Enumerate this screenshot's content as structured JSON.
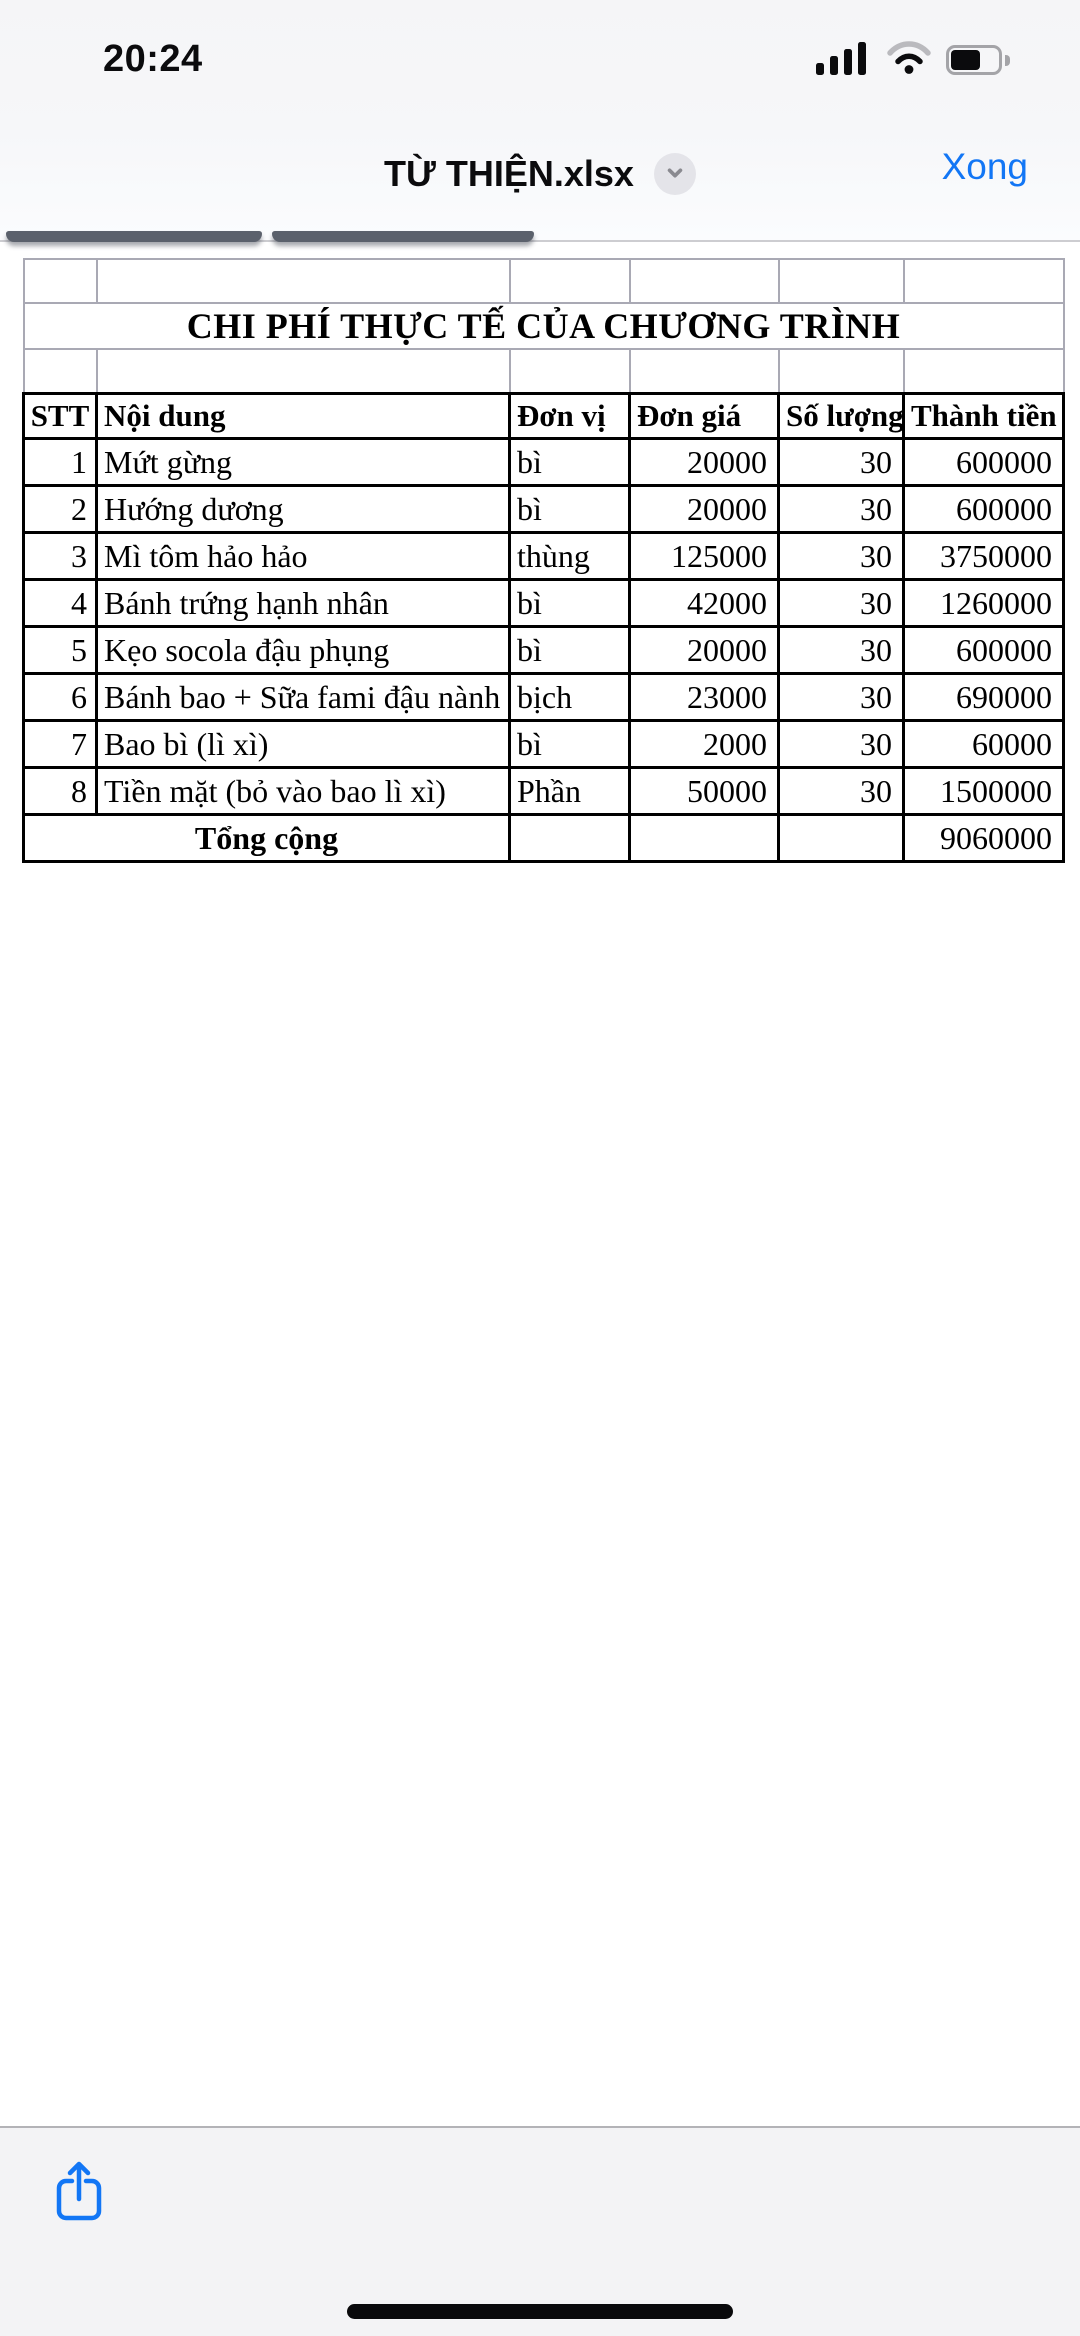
{
  "status_bar": {
    "time": "20:24"
  },
  "nav": {
    "title": "TỪ THIỆN.xlsx",
    "done_label": "Xong"
  },
  "sheet": {
    "title": "CHI PHÍ THỰC TẾ CỦA CHƯƠNG TRÌNH",
    "columns": [
      "STT",
      "Nội dung",
      "Đơn vị",
      "Đơn giá",
      "Số lượng",
      "Thành tiền"
    ],
    "rows": [
      [
        "1",
        "Mứt gừng",
        "bì",
        "20000",
        "30",
        "600000"
      ],
      [
        "2",
        "Hướng dương",
        "bì",
        "20000",
        "30",
        "600000"
      ],
      [
        "3",
        "Mì tôm hảo hảo",
        "thùng",
        "125000",
        "30",
        "3750000"
      ],
      [
        "4",
        "Bánh trứng hạnh nhân",
        "bì",
        "42000",
        "30",
        "1260000"
      ],
      [
        "5",
        "Kẹo socola đậu phụng",
        "bì",
        "20000",
        "30",
        "600000"
      ],
      [
        "6",
        "Bánh bao + Sữa fami đậu nành",
        "bịch",
        "23000",
        "30",
        "690000"
      ],
      [
        "7",
        "Bao bì (lì xì)",
        "bì",
        "2000",
        "30",
        "60000"
      ],
      [
        "8",
        "Tiền mặt (bỏ vào bao lì xì)",
        "Phần",
        "50000",
        "30",
        "1500000"
      ]
    ],
    "total_label": "Tổng cộng",
    "total_value": "9060000"
  },
  "icons": {
    "cellular": "cellular-signal-icon",
    "wifi": "wifi-icon",
    "battery": "battery-icon",
    "chevron": "chevron-down-icon",
    "share": "share-icon"
  },
  "colors": {
    "accent_blue": "#1276f5",
    "table_border": "#000000",
    "grid_border": "#a9a9b4"
  }
}
